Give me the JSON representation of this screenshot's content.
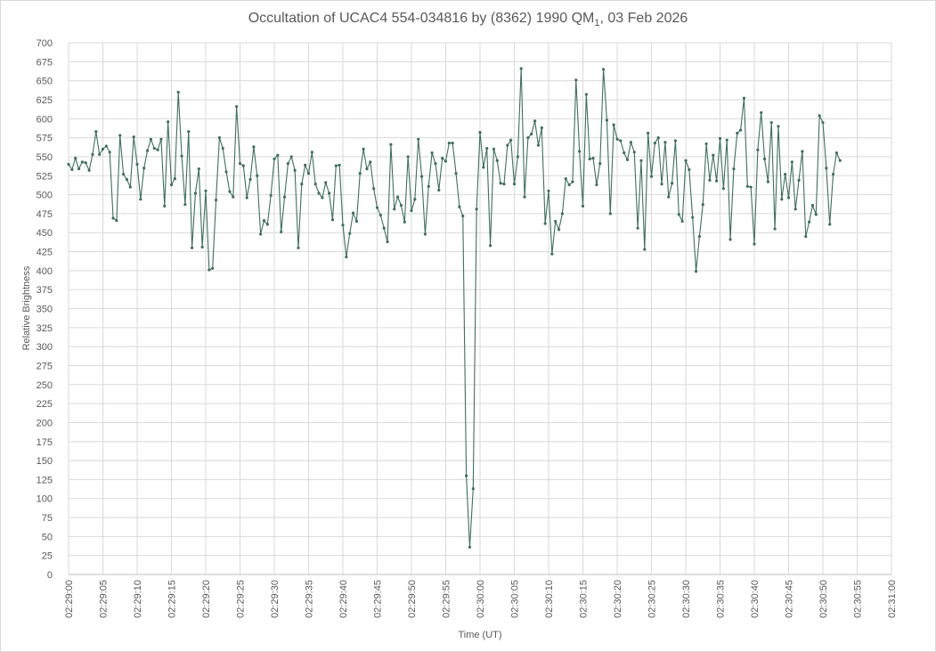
{
  "chart_data": {
    "type": "line",
    "title": {
      "main": "Occultation of UCAC4 554-034816 by (8362) 1990 QM",
      "subscript": "1",
      "suffix": ", 03 Feb 2026"
    },
    "xlabel": "Time (UT)",
    "ylabel": "Relative Brightness",
    "ylim": [
      0,
      700
    ],
    "ytick_step": 25,
    "xlim_seconds": [
      0,
      120
    ],
    "xtick_labels": [
      "02:29:00",
      "02:29:05",
      "02:29:10",
      "02:29:15",
      "02:29:20",
      "02:29:25",
      "02:29:30",
      "02:29:35",
      "02:29:40",
      "02:29:45",
      "02:29:50",
      "02:29:55",
      "02:30:00",
      "02:30:05",
      "02:30:10",
      "02:30:15",
      "02:30:20",
      "02:30:25",
      "02:30:30",
      "02:30:35",
      "02:30:40",
      "02:30:45",
      "02:30:50",
      "02:30:55",
      "02:31:00"
    ],
    "grid": true,
    "series": [
      {
        "color": "#3f6f5e",
        "x_start": "02:29:00",
        "x_interval_seconds": 0.5,
        "values": [
          540,
          533,
          548,
          534,
          543,
          542,
          532,
          553,
          583,
          553,
          560,
          564,
          556,
          469,
          466,
          578,
          527,
          520,
          510,
          576,
          540,
          494,
          535,
          558,
          573,
          561,
          559,
          573,
          485,
          596,
          513,
          521,
          635,
          551,
          487,
          583,
          430,
          502,
          534,
          431,
          505,
          401,
          403,
          493,
          575,
          561,
          530,
          504,
          497,
          616,
          541,
          538,
          496,
          520,
          563,
          525,
          448,
          466,
          461,
          499,
          547,
          552,
          451,
          497,
          541,
          550,
          532,
          430,
          514,
          539,
          528,
          556,
          514,
          502,
          496,
          516,
          502,
          467,
          538,
          539,
          460,
          418,
          449,
          476,
          465,
          528,
          560,
          534,
          543,
          508,
          483,
          473,
          456,
          438,
          566,
          481,
          497,
          486,
          464,
          550,
          479,
          494,
          573,
          524,
          448,
          511,
          555,
          541,
          506,
          548,
          544,
          568,
          568,
          528,
          484,
          472,
          130,
          36,
          113,
          481,
          582,
          536,
          561,
          433,
          560,
          545,
          515,
          514,
          565,
          572,
          514,
          550,
          666,
          497,
          575,
          580,
          597,
          565,
          588,
          462,
          505,
          422,
          465,
          454,
          475,
          521,
          513,
          517,
          651,
          557,
          485,
          632,
          547,
          548,
          513,
          541,
          665,
          598,
          475,
          592,
          573,
          571,
          555,
          546,
          569,
          556,
          456,
          545,
          428,
          581,
          524,
          568,
          575,
          514,
          569,
          497,
          515,
          571,
          474,
          465,
          545,
          533,
          470,
          399,
          445,
          487,
          567,
          519,
          552,
          518,
          574,
          508,
          572,
          441,
          534,
          581,
          585,
          627,
          511,
          510,
          435,
          559,
          608,
          547,
          517,
          595,
          455,
          590,
          494,
          527,
          496,
          543,
          481,
          519,
          557,
          445,
          464,
          486,
          474,
          604,
          595,
          535,
          461,
          527,
          555,
          545
        ]
      }
    ]
  }
}
